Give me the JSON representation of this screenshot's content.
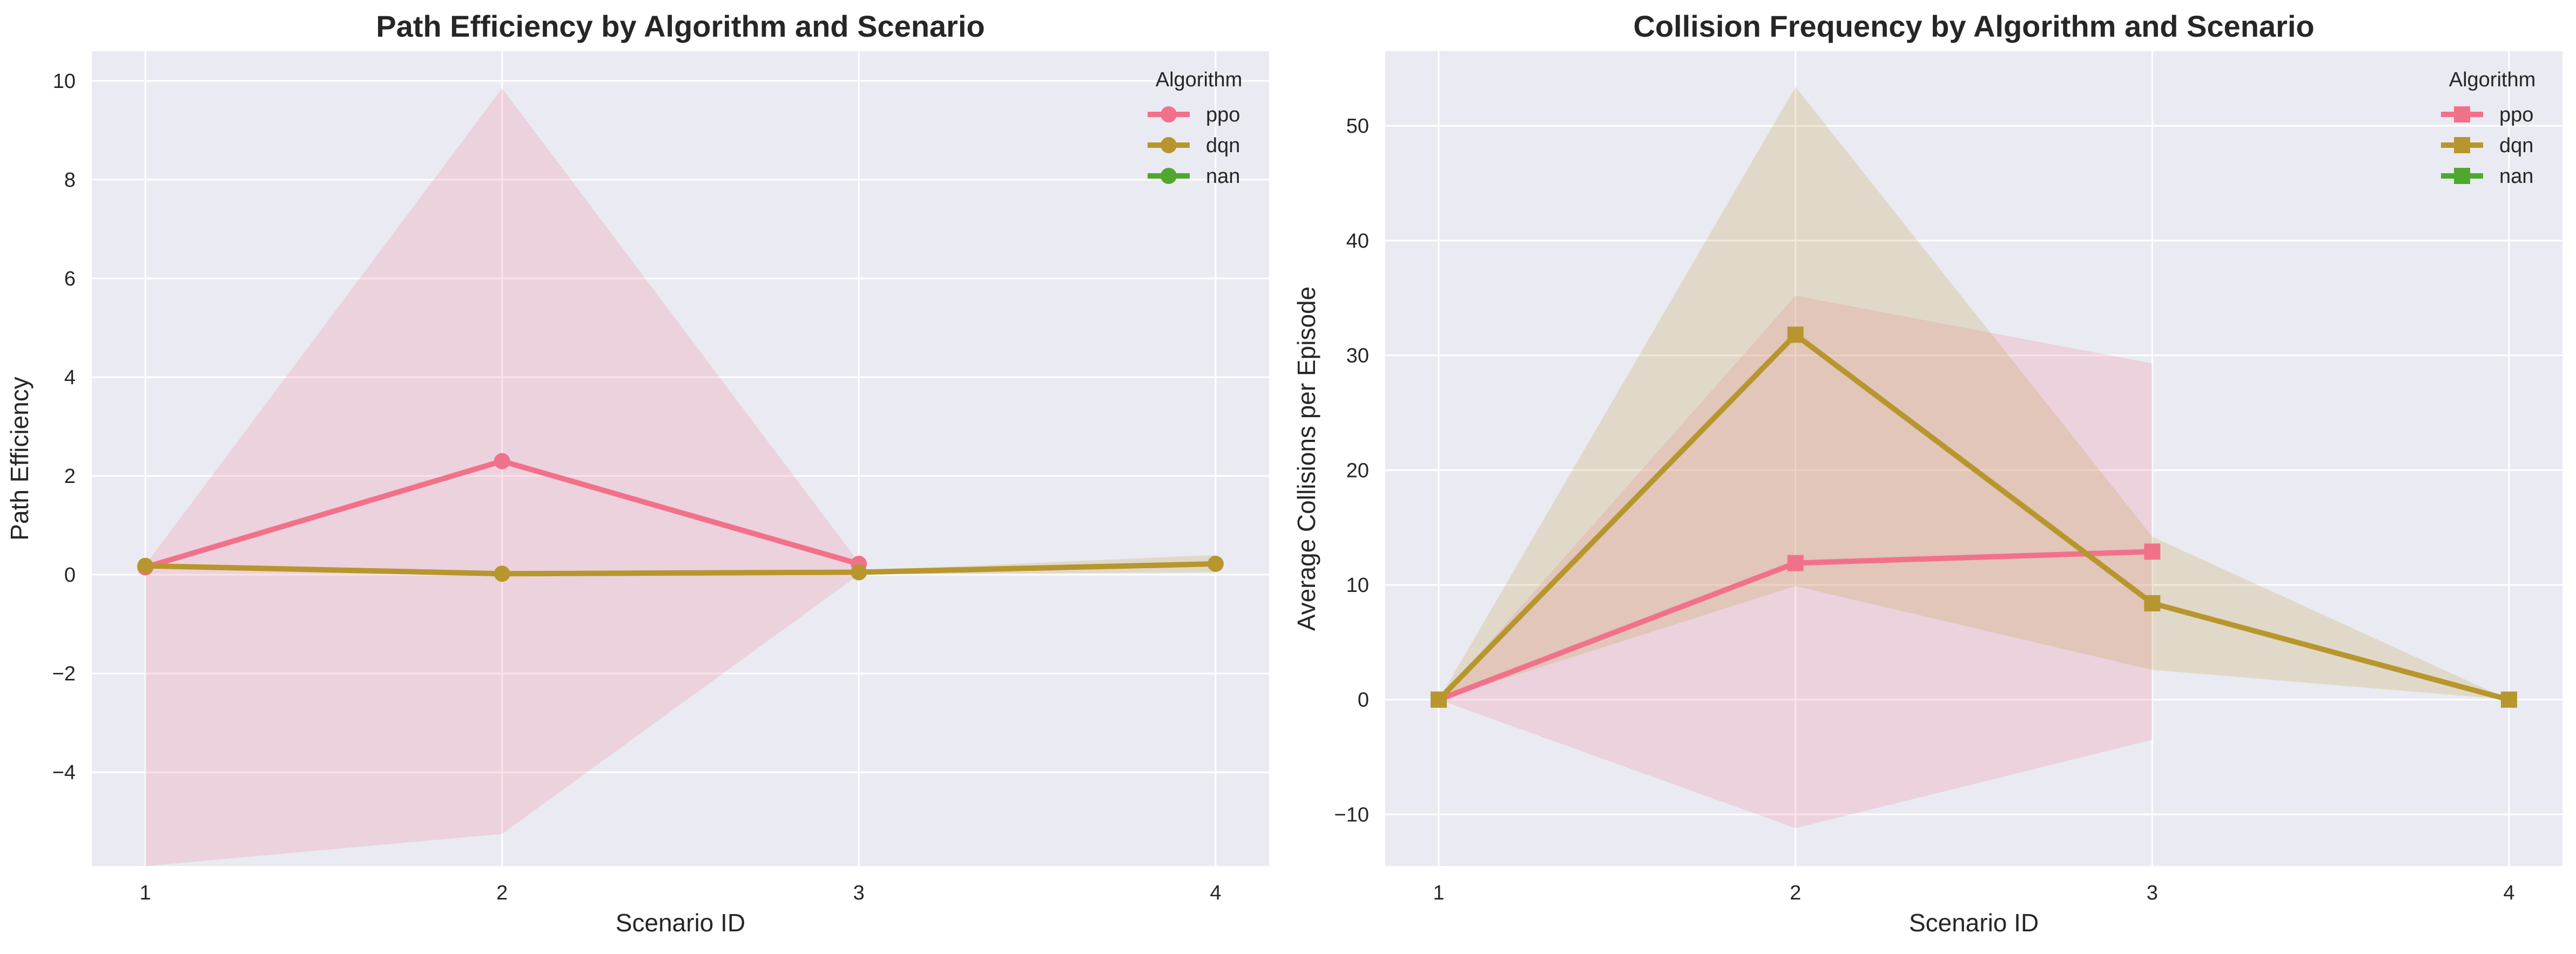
{
  "colors": {
    "background": "#eaeaf2",
    "grid": "#ffffff",
    "ppo": "#f2718a",
    "dqn": "#b8962e",
    "nan": "#4fa82e"
  },
  "legend": {
    "title": "Algorithm",
    "placement": "top-right",
    "entries": [
      "ppo",
      "dqn",
      "nan"
    ]
  },
  "chart_data": [
    {
      "type": "line",
      "title": "Path Efficiency by Algorithm and Scenario",
      "xlabel": "Scenario ID",
      "ylabel": "Path Efficiency",
      "x": [
        1,
        2,
        3,
        4
      ],
      "xlim": [
        0.85,
        4.15
      ],
      "ylim": [
        -5.9,
        10.6
      ],
      "xticks": [
        1,
        2,
        3,
        4
      ],
      "xtick_labels": [
        "1",
        "2",
        "3",
        "4"
      ],
      "yticks": [
        -4,
        -2,
        0,
        2,
        4,
        6,
        8,
        10
      ],
      "ytick_labels": [
        "−4",
        "−2",
        "0",
        "2",
        "4",
        "6",
        "8",
        "10"
      ],
      "marker": "circle",
      "grid": true,
      "series": [
        {
          "name": "ppo",
          "color": "#f2718a",
          "x": [
            1,
            2,
            3
          ],
          "values": [
            0.15,
            2.3,
            0.22
          ],
          "band_low": [
            -5.9,
            -5.25,
            0.0
          ],
          "band_high": [
            0.2,
            9.85,
            0.25
          ]
        },
        {
          "name": "dqn",
          "color": "#b8962e",
          "x": [
            1,
            2,
            3,
            4
          ],
          "values": [
            0.18,
            0.02,
            0.05,
            0.22
          ],
          "band_low": [
            0.15,
            0.0,
            0.0,
            0.05
          ],
          "band_high": [
            0.2,
            0.03,
            0.08,
            0.4
          ]
        },
        {
          "name": "nan",
          "color": "#4fa82e",
          "x": [],
          "values": [],
          "band_low": [],
          "band_high": []
        }
      ]
    },
    {
      "type": "line",
      "title": "Collision Frequency by Algorithm and Scenario",
      "xlabel": "Scenario ID",
      "ylabel": "Average Collisions per Episode",
      "x": [
        1,
        2,
        3,
        4
      ],
      "xlim": [
        0.85,
        4.15
      ],
      "ylim": [
        -14.5,
        56.5
      ],
      "xticks": [
        1,
        2,
        3,
        4
      ],
      "xtick_labels": [
        "1",
        "2",
        "3",
        "4"
      ],
      "yticks": [
        -10,
        0,
        10,
        20,
        30,
        40,
        50
      ],
      "ytick_labels": [
        "−10",
        "0",
        "10",
        "20",
        "30",
        "40",
        "50"
      ],
      "marker": "square",
      "grid": true,
      "series": [
        {
          "name": "ppo",
          "color": "#f2718a",
          "x": [
            1,
            2,
            3
          ],
          "values": [
            0,
            11.9,
            12.9
          ],
          "band_low": [
            0,
            -11.2,
            -3.5
          ],
          "band_high": [
            0,
            35.2,
            29.3
          ]
        },
        {
          "name": "dqn",
          "color": "#b8962e",
          "x": [
            1,
            2,
            3,
            4
          ],
          "values": [
            0,
            31.8,
            8.4,
            0
          ],
          "band_low": [
            0,
            9.9,
            2.6,
            0
          ],
          "band_high": [
            0,
            53.4,
            14.2,
            0
          ]
        },
        {
          "name": "nan",
          "color": "#4fa82e",
          "x": [],
          "values": [],
          "band_low": [],
          "band_high": []
        }
      ]
    }
  ]
}
